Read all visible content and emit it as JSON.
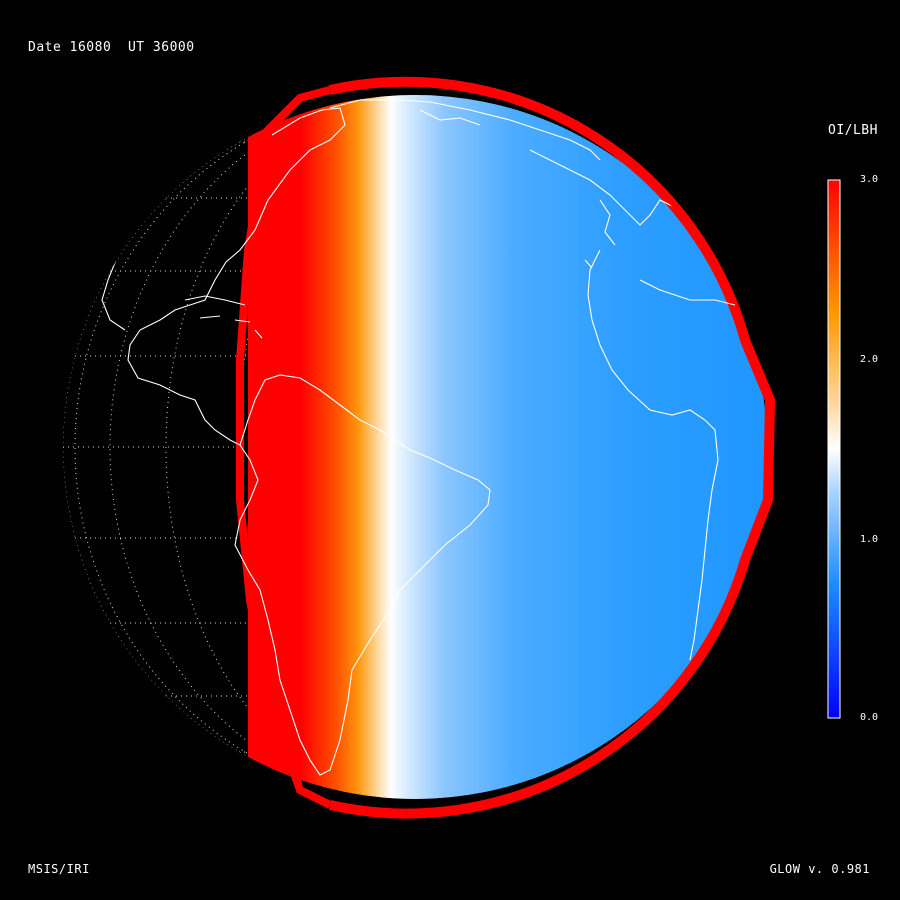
{
  "header": {
    "date_label": "Date 16080",
    "ut_label": "UT 36000"
  },
  "footer": {
    "model": "MSIS/IRI",
    "version": "GLOW v. 0.981"
  },
  "colorbar": {
    "title": "OI/LBH",
    "min": 0.0,
    "max": 3.0,
    "ticks": [
      {
        "value": 3.0,
        "label": "3.0"
      },
      {
        "value": 2.0,
        "label": "2.0"
      },
      {
        "value": 1.0,
        "label": "1.0"
      },
      {
        "value": 0.0,
        "label": "0.0"
      }
    ],
    "color_stops": [
      {
        "value": 0.0,
        "color": "#0000ff"
      },
      {
        "value": 0.75,
        "color": "#1e8cff"
      },
      {
        "value": 1.25,
        "color": "#a8d4ff"
      },
      {
        "value": 1.5,
        "color": "#ffffff"
      },
      {
        "value": 1.75,
        "color": "#ffd9a0"
      },
      {
        "value": 2.25,
        "color": "#ff9900"
      },
      {
        "value": 2.75,
        "color": "#ff3300"
      },
      {
        "value": 3.0,
        "color": "#ff0000"
      }
    ]
  },
  "map": {
    "projection": "orthographic",
    "center_lon": -30,
    "center_lat": 0,
    "graticule_step_deg": 15,
    "terminator_lon": -38,
    "limb_color": "#ff0000",
    "coastline_color": "#ffffff",
    "graticule_color": "#ffffff",
    "day_field_color": "#1e9bff",
    "dark_side": "none"
  }
}
